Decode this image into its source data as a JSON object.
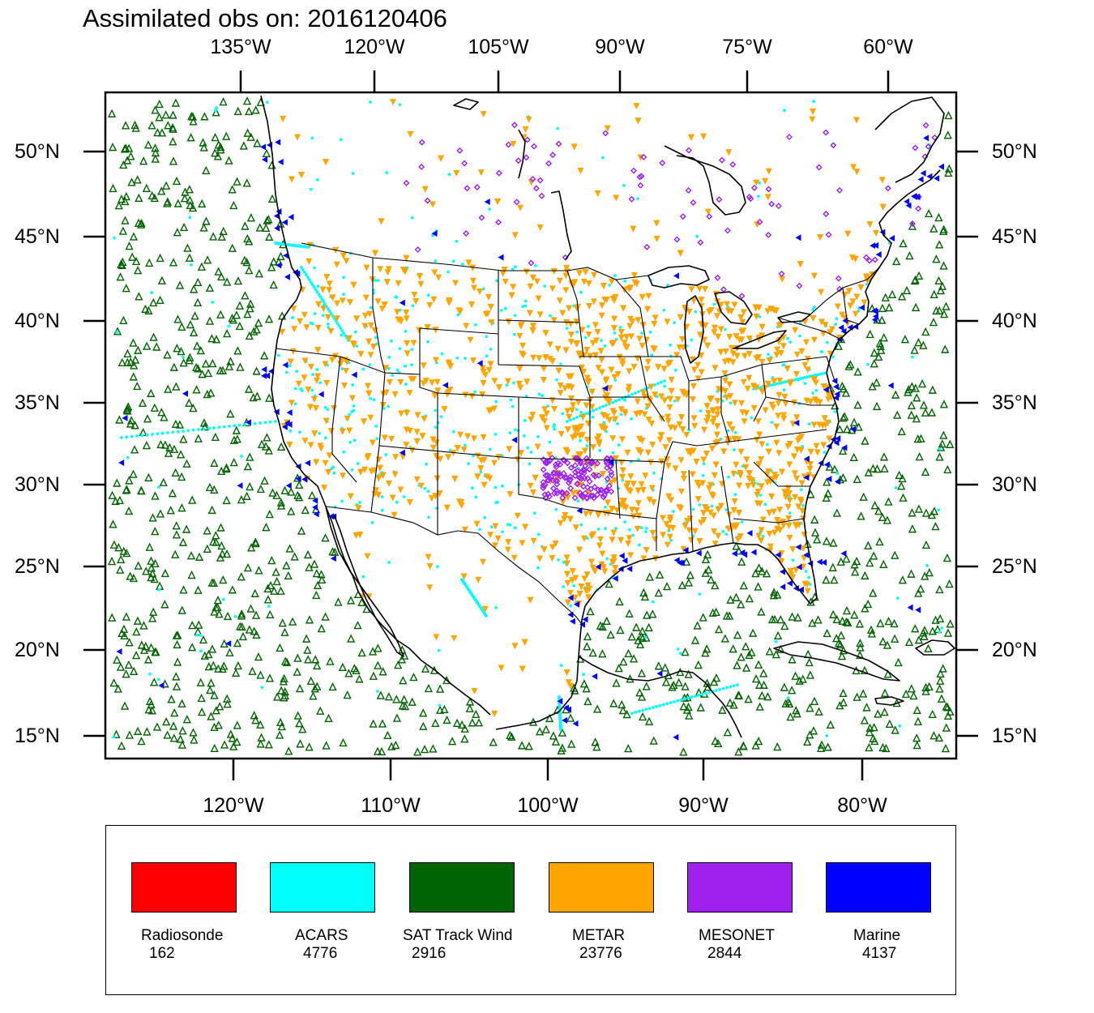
{
  "title": "Assimilated obs on: 2016120406",
  "map": {
    "top_longitudes": [
      "135°W",
      "120°W",
      "105°W",
      "90°W",
      "75°W",
      "60°W"
    ],
    "bottom_longitudes": [
      "120°W",
      "110°W",
      "100°W",
      "90°W",
      "80°W"
    ],
    "left_latitudes": [
      "50°N",
      "45°N",
      "40°N",
      "35°N",
      "30°N",
      "25°N",
      "20°N",
      "15°N"
    ],
    "right_latitudes": [
      "50°N",
      "45°N",
      "40°N",
      "35°N",
      "30°N",
      "25°N",
      "20°N",
      "15°N"
    ],
    "lon_range_deg_w": [
      128,
      74
    ],
    "lat_range_deg_n": [
      14,
      53
    ]
  },
  "legend": [
    {
      "label": "Radiosonde",
      "count": "162",
      "color": "#ff0000"
    },
    {
      "label": "ACARS",
      "count": "4776",
      "color": "#00ffff"
    },
    {
      "label": "SAT Track Wind",
      "count": "2916",
      "color": "#006400"
    },
    {
      "label": "METAR",
      "count": "23776",
      "color": "#ffa500"
    },
    {
      "label": "MESONET",
      "count": "2844",
      "color": "#a020f0"
    },
    {
      "label": "Marine",
      "count": "4137",
      "color": "#0000ff"
    }
  ]
}
